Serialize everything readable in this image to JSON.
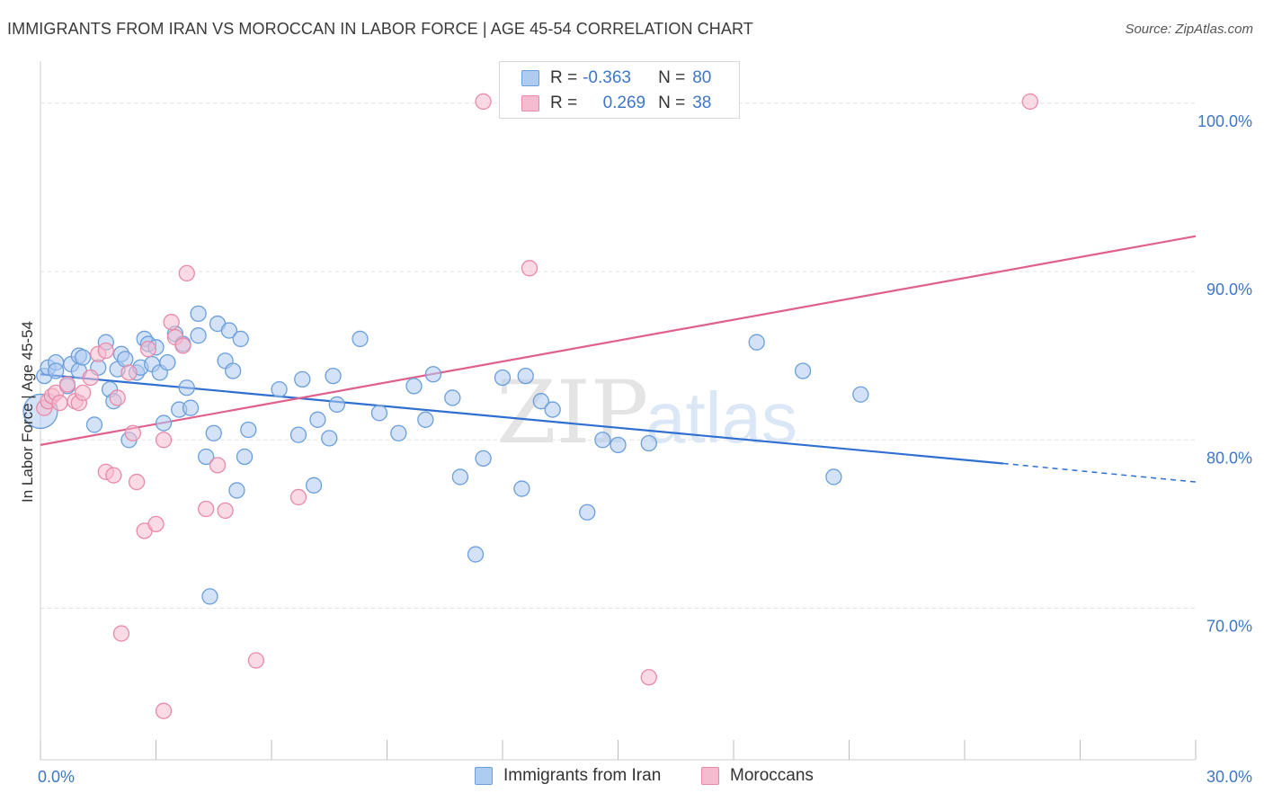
{
  "title": "IMMIGRANTS FROM IRAN VS MOROCCAN IN LABOR FORCE | AGE 45-54 CORRELATION CHART",
  "source": "Source: ZipAtlas.com",
  "watermark": {
    "zip": "ZIP",
    "atlas": "atlas"
  },
  "legend": {
    "rows": [
      {
        "r_label": "R =",
        "r_value": "-0.363",
        "n_label": "N =",
        "n_value": "80"
      },
      {
        "r_label": "R =",
        "r_value": "0.269",
        "n_label": "N =",
        "n_value": "38"
      }
    ]
  },
  "colors": {
    "blue_fill": "#aecbf0",
    "blue_stroke": "#6a9fdc",
    "blue_line": "#2f6fd0",
    "pink_fill": "#f5bcd0",
    "pink_stroke": "#e88aa8",
    "pink_line": "#e0608c",
    "accent_text": "#3e76c8",
    "grid": "#e2e2e2"
  },
  "chart_data": {
    "type": "scatter",
    "title": "IMMIGRANTS FROM IRAN VS MOROCCAN IN LABOR FORCE | AGE 45-54 CORRELATION CHART",
    "xlabel": "",
    "ylabel": "In Labor Force | Age 45-54",
    "xlim": [
      0,
      30
    ],
    "ylim": [
      61.0,
      102.5
    ],
    "x_tick_labels": [
      {
        "value": 0,
        "label": "0.0%"
      },
      {
        "value": 30,
        "label": "30.0%"
      }
    ],
    "y_tick_labels": [
      {
        "value": 100,
        "label": "100.0%"
      },
      {
        "value": 90,
        "label": "90.0%"
      },
      {
        "value": 80,
        "label": "80.0%"
      },
      {
        "value": 70,
        "label": "70.0%"
      }
    ],
    "grid": true,
    "legend_position": "top-center",
    "series": [
      {
        "name": "Immigrants from Iran",
        "color": "#aecbf0",
        "trend": {
          "x0": 0,
          "y0": 83.9,
          "x1": 25.0,
          "y1": 78.6,
          "dashed_to_x": 30,
          "dashed_to_y": 77.5
        },
        "points": [
          [
            0.0,
            81.7
          ],
          [
            0.1,
            83.8
          ],
          [
            0.2,
            84.3
          ],
          [
            0.4,
            84.6
          ],
          [
            0.4,
            84.1
          ],
          [
            0.8,
            84.5
          ],
          [
            0.7,
            83.2
          ],
          [
            1.0,
            84.1
          ],
          [
            1.0,
            85.0
          ],
          [
            1.1,
            84.9
          ],
          [
            1.4,
            80.9
          ],
          [
            1.5,
            84.3
          ],
          [
            1.7,
            85.8
          ],
          [
            1.8,
            83.0
          ],
          [
            1.9,
            82.3
          ],
          [
            2.0,
            84.2
          ],
          [
            2.1,
            85.1
          ],
          [
            2.2,
            84.8
          ],
          [
            2.3,
            80.0
          ],
          [
            2.5,
            84.0
          ],
          [
            2.6,
            84.3
          ],
          [
            2.7,
            86.0
          ],
          [
            2.8,
            85.7
          ],
          [
            2.9,
            84.5
          ],
          [
            3.0,
            85.5
          ],
          [
            3.1,
            84.0
          ],
          [
            3.2,
            81.0
          ],
          [
            3.3,
            84.6
          ],
          [
            3.5,
            86.3
          ],
          [
            3.6,
            81.8
          ],
          [
            3.7,
            85.7
          ],
          [
            3.8,
            83.1
          ],
          [
            3.9,
            81.9
          ],
          [
            4.1,
            86.2
          ],
          [
            4.1,
            87.5
          ],
          [
            4.3,
            79.0
          ],
          [
            4.4,
            70.7
          ],
          [
            4.5,
            80.4
          ],
          [
            4.6,
            86.9
          ],
          [
            4.8,
            84.7
          ],
          [
            4.9,
            86.5
          ],
          [
            5.0,
            84.1
          ],
          [
            5.1,
            77.0
          ],
          [
            5.2,
            86.0
          ],
          [
            5.3,
            79.0
          ],
          [
            5.4,
            80.6
          ],
          [
            6.2,
            83.0
          ],
          [
            6.7,
            80.3
          ],
          [
            6.8,
            83.6
          ],
          [
            7.1,
            77.3
          ],
          [
            7.2,
            81.2
          ],
          [
            7.5,
            80.1
          ],
          [
            7.6,
            83.8
          ],
          [
            7.7,
            82.1
          ],
          [
            8.3,
            86.0
          ],
          [
            8.8,
            81.6
          ],
          [
            9.3,
            80.4
          ],
          [
            9.7,
            83.2
          ],
          [
            10.0,
            81.2
          ],
          [
            10.2,
            83.9
          ],
          [
            10.7,
            82.5
          ],
          [
            10.9,
            77.8
          ],
          [
            11.3,
            73.2
          ],
          [
            11.5,
            78.9
          ],
          [
            12.0,
            83.7
          ],
          [
            12.5,
            77.1
          ],
          [
            12.6,
            83.8
          ],
          [
            13.0,
            82.3
          ],
          [
            13.3,
            81.8
          ],
          [
            14.2,
            75.7
          ],
          [
            14.6,
            80.0
          ],
          [
            15.0,
            79.7
          ],
          [
            15.8,
            79.8
          ],
          [
            18.6,
            85.8
          ],
          [
            19.8,
            84.1
          ],
          [
            20.6,
            77.8
          ],
          [
            21.3,
            82.7
          ]
        ]
      },
      {
        "name": "Moroccans",
        "color": "#f5bcd0",
        "trend": {
          "x0": 0,
          "y0": 79.7,
          "x1": 30,
          "y1": 92.1
        },
        "points": [
          [
            0.1,
            81.9
          ],
          [
            0.2,
            82.3
          ],
          [
            0.3,
            82.6
          ],
          [
            0.4,
            82.8
          ],
          [
            0.5,
            82.2
          ],
          [
            0.7,
            83.3
          ],
          [
            0.9,
            82.3
          ],
          [
            1.0,
            82.2
          ],
          [
            1.1,
            82.8
          ],
          [
            1.3,
            83.7
          ],
          [
            1.5,
            85.1
          ],
          [
            1.7,
            85.3
          ],
          [
            1.7,
            78.1
          ],
          [
            1.9,
            77.9
          ],
          [
            2.0,
            82.5
          ],
          [
            2.1,
            68.5
          ],
          [
            2.3,
            84.0
          ],
          [
            2.4,
            80.4
          ],
          [
            2.5,
            77.5
          ],
          [
            2.7,
            74.6
          ],
          [
            2.8,
            85.4
          ],
          [
            3.0,
            75.0
          ],
          [
            3.2,
            63.9
          ],
          [
            3.2,
            80.0
          ],
          [
            3.4,
            87.0
          ],
          [
            3.5,
            86.1
          ],
          [
            3.7,
            85.6
          ],
          [
            3.8,
            89.9
          ],
          [
            4.3,
            75.9
          ],
          [
            4.6,
            78.5
          ],
          [
            4.8,
            75.8
          ],
          [
            5.6,
            66.9
          ],
          [
            6.7,
            76.6
          ],
          [
            11.5,
            100.1
          ],
          [
            12.7,
            90.2
          ],
          [
            15.8,
            65.9
          ],
          [
            25.7,
            100.1
          ]
        ]
      }
    ]
  }
}
